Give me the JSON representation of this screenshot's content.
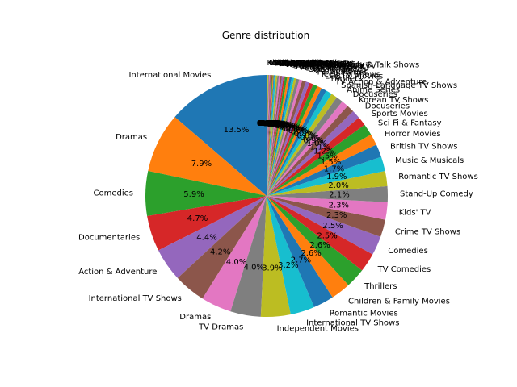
{
  "chart_data": {
    "type": "pie",
    "title": "Genre distribution",
    "start_angle_deg": 90,
    "counterclockwise": true,
    "slices": [
      {
        "label": "International Movies",
        "value": 13.5,
        "pct": "13.5%"
      },
      {
        "label": "Dramas",
        "value": 7.9,
        "pct": "7.9%"
      },
      {
        "label": "Comedies",
        "value": 5.9,
        "pct": "5.9%"
      },
      {
        "label": "Documentaries",
        "value": 4.7,
        "pct": "4.7%"
      },
      {
        "label": "Action & Adventure",
        "value": 4.4,
        "pct": "4.4%"
      },
      {
        "label": "International TV Shows",
        "value": 4.2,
        "pct": "4.2%"
      },
      {
        "label": "Dramas",
        "value": 4.0,
        "pct": "4.0%"
      },
      {
        "label": "TV Dramas",
        "value": 4.0,
        "pct": "4.0%"
      },
      {
        "label": "Independent Movies",
        "value": 3.9,
        "pct": "3.9%"
      },
      {
        "label": "International TV Shows",
        "value": 3.2,
        "pct": "3.2%"
      },
      {
        "label": "Romantic Movies",
        "value": 2.7,
        "pct": "2.7%"
      },
      {
        "label": "Children & Family Movies",
        "value": 2.6,
        "pct": "2.6%"
      },
      {
        "label": "Thrillers",
        "value": 2.6,
        "pct": "2.6%"
      },
      {
        "label": "TV Comedies",
        "value": 2.5,
        "pct": "2.5%"
      },
      {
        "label": "Comedies",
        "value": 2.5,
        "pct": "2.5%"
      },
      {
        "label": "Crime TV Shows",
        "value": 2.3,
        "pct": "2.3%"
      },
      {
        "label": "Kids' TV",
        "value": 2.3,
        "pct": "2.3%"
      },
      {
        "label": "Stand-Up Comedy",
        "value": 2.1,
        "pct": "2.1%"
      },
      {
        "label": "Romantic TV Shows",
        "value": 2.0,
        "pct": "2.0%"
      },
      {
        "label": "Music & Musicals",
        "value": 1.9,
        "pct": "1.9%"
      },
      {
        "label": "British TV Shows",
        "value": 1.7,
        "pct": "1.7%"
      },
      {
        "label": "Horror Movies",
        "value": 1.5,
        "pct": "1.5%"
      },
      {
        "label": "Sci-Fi & Fantasy",
        "value": 1.5,
        "pct": "1.5%"
      },
      {
        "label": "Sports Movies",
        "value": 1.2,
        "pct": "1.2%"
      },
      {
        "label": "Docuseries",
        "value": 1.1,
        "pct": "1.1%"
      },
      {
        "label": "Korean TV Shows",
        "value": 1.0,
        "pct": "1.0%"
      },
      {
        "label": "Docuseries",
        "value": 0.9,
        "pct": "0.9%"
      },
      {
        "label": "Anime Series",
        "value": 0.9,
        "pct": "0.9%"
      },
      {
        "label": "Spanish-Language TV Shows",
        "value": 0.8,
        "pct": "0.8%"
      },
      {
        "label": "TV Action & Adventure",
        "value": 0.8,
        "pct": "0.8%"
      },
      {
        "label": "Thrillers",
        "value": 0.7,
        "pct": "0.7%"
      },
      {
        "label": "LGBTQ Movies",
        "value": 0.6,
        "pct": "0.6%"
      },
      {
        "label": "Teen TV Shows",
        "value": 0.6,
        "pct": "0.6%"
      },
      {
        "label": "TV Mysteries",
        "value": 0.5,
        "pct": "0.5%"
      },
      {
        "label": "Reality TV",
        "value": 0.5,
        "pct": "0.5%"
      },
      {
        "label": "Classic Movies",
        "value": 0.5,
        "pct": "0.5%"
      },
      {
        "label": "Cult Movies",
        "value": 0.4,
        "pct": "0.4%"
      },
      {
        "label": "Anime Features",
        "value": 0.4,
        "pct": "0.4%"
      },
      {
        "label": "TV Horror",
        "value": 0.3,
        "pct": "0.3%"
      },
      {
        "label": "Faith & Spirituality",
        "value": 0.3,
        "pct": "0.3%"
      },
      {
        "label": "Science & Nature TV",
        "value": 0.3,
        "pct": "0.3%"
      },
      {
        "label": "Stand-Up Comedy & Talk Shows",
        "value": 0.3,
        "pct": "0.3%"
      },
      {
        "label": "TV Sci-Fi & Fantasy",
        "value": 0.3,
        "pct": "0.3%"
      },
      {
        "label": "Movies",
        "value": 0.2,
        "pct": "0.2%"
      },
      {
        "label": "Classic & Cult TV",
        "value": 0.2,
        "pct": "0.2%"
      },
      {
        "label": "TV Thrillers",
        "value": 0.2,
        "pct": "0.2%"
      },
      {
        "label": "Korean TV Shows",
        "value": 0.2,
        "pct": "0.2%"
      },
      {
        "label": "LGBTQ Movies",
        "value": 0.2,
        "pct": "0.2%"
      },
      {
        "label": "Stand-Up Comedy",
        "value": 0.2,
        "pct": "0.2%"
      },
      {
        "label": "Romantic TV Shows",
        "value": 0.2,
        "pct": "0.2%"
      },
      {
        "label": "Music & Musicals",
        "value": 0.1,
        "pct": "0.1%"
      },
      {
        "label": "Sports Movies",
        "value": 0.1,
        "pct": "0.1%"
      },
      {
        "label": "Teen TV Shows",
        "value": 0.1,
        "pct": "0.1%"
      },
      {
        "label": "Cult Movies",
        "value": 0.1,
        "pct": "0.1%"
      },
      {
        "label": "Anime Features",
        "value": 0.1,
        "pct": "0.1%"
      },
      {
        "label": "Faith & Spirituality",
        "value": 0.1,
        "pct": "0.1%"
      },
      {
        "label": "Horror Movies",
        "value": 0.1,
        "pct": "0.1%"
      },
      {
        "label": "Classic Movies",
        "value": 0.1,
        "pct": "0.1%"
      },
      {
        "label": "TV Shows",
        "value": 0.1,
        "pct": "0.1%"
      },
      {
        "label": "Kids' TV",
        "value": 0.1,
        "pct": "0.1%"
      }
    ],
    "colors": [
      "#1f77b4",
      "#ff7f0e",
      "#2ca02c",
      "#d62728",
      "#9467bd",
      "#8c564b",
      "#e377c2",
      "#7f7f7f",
      "#bcbd22",
      "#17becf"
    ]
  }
}
